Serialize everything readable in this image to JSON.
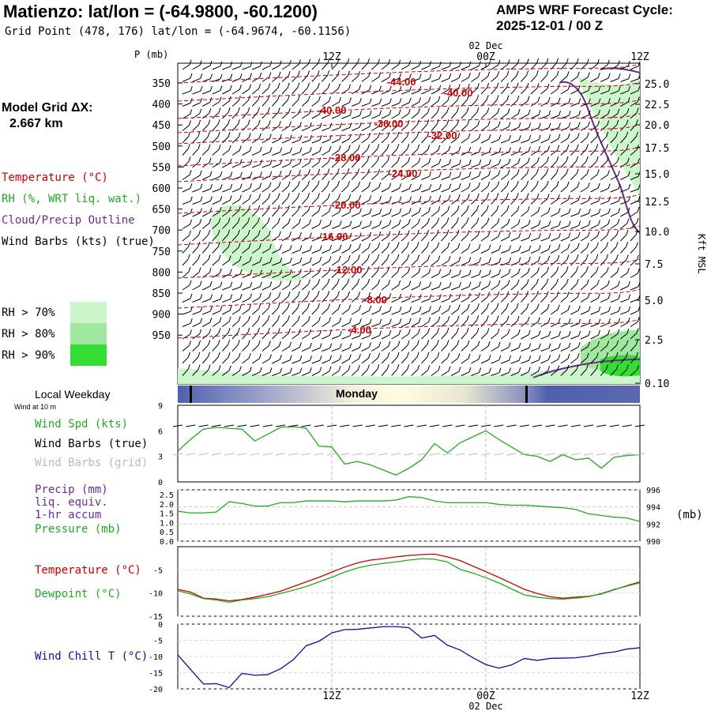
{
  "header": {
    "title": "Matienzo:  lat/lon = (-64.9800, -60.1200)",
    "grid_point": "Grid Point (478, 176) lat/lon = (-64.9674, -60.1156)",
    "cycle_line1": "AMPS WRF Forecast Cycle:",
    "cycle_line2": "2025-12-01 / 00  Z",
    "model_grid_label": "Model Grid ΔX:",
    "model_grid_value": "2.667 km"
  },
  "legend": {
    "temperature": "Temperature (°C)",
    "rh": "RH (%, WRT liq. wat.)",
    "cloud": "Cloud/Precip Outline",
    "wind_barbs": "Wind Barbs (kts) (true)",
    "rh70": "RH > 70%",
    "rh80": "RH > 80%",
    "rh90": "RH > 90%",
    "local_weekday": "Local Weekday",
    "wind_at": "Wind at 10 m",
    "weekday": "Monday",
    "wind_spd": "Wind Spd (kts)",
    "wind_barbs_true": "Wind Barbs (true)",
    "wind_barbs_grid": "Wind Barbs (grid)",
    "precip1": "Precip (mm)",
    "precip2": "liq. equiv.",
    "precip3": "1-hr accum",
    "pressure": "Pressure (mb)",
    "pressure_unit": "(mb)",
    "temp2": "Temperature (°C)",
    "dewpoint": "Dewpoint (°C)",
    "windchill": "Wind Chill T (°C)"
  },
  "colors": {
    "temperature": "#cc0000",
    "rh": "#22aa22",
    "cloud": "#6a2c91",
    "grid_barbs": "#bbbbbb",
    "wind_chill": "#1010a0",
    "rh70": "#ccf5cc",
    "rh80": "#a0e8a0",
    "rh90": "#33dd33"
  },
  "chart_data": [
    {
      "type": "contour",
      "name": "cross-section",
      "p_axis_label": "P (mb)",
      "p_ticks": [
        "350",
        "400",
        "450",
        "500",
        "550",
        "600",
        "650",
        "700",
        "750",
        "800",
        "850",
        "900",
        "950"
      ],
      "z_axis_label": "Kft MSL",
      "z_ticks": [
        "25.0",
        "22.5",
        "20.0",
        "17.5",
        "15.0",
        "12.5",
        "10.0",
        "7.5",
        "5.0",
        "2.5",
        "0.10"
      ],
      "time_ticks_top": [
        "12Z",
        "00Z",
        "12Z"
      ],
      "date_top": "02 Dec",
      "temperature_contours": [
        "-44.00",
        "-40.00",
        "-40.00",
        "-36.00",
        "-32.00",
        "-28.00",
        "-24.00",
        "-20.00",
        "-16.00",
        "-12.00",
        "-8.00",
        "-4.00"
      ]
    },
    {
      "type": "line",
      "name": "wind-speed",
      "yticks": [
        "9",
        "6",
        "3",
        "0"
      ],
      "ylim": [
        0,
        9
      ],
      "hours": [
        0,
        1,
        2,
        3,
        4,
        5,
        6,
        7,
        8,
        9,
        10,
        11,
        12,
        13,
        14,
        15,
        16,
        17,
        18,
        19,
        20,
        21,
        22,
        23,
        24,
        25,
        26,
        27,
        28,
        29,
        30,
        31,
        32,
        33,
        34,
        35,
        36
      ],
      "values": [
        3.6,
        5.0,
        6.2,
        6.4,
        6.3,
        6.2,
        4.8,
        5.6,
        6.4,
        6.5,
        6.3,
        4.2,
        4.1,
        2.1,
        2.4,
        2.0,
        1.4,
        0.8,
        1.6,
        2.6,
        4.5,
        3.4,
        4.6,
        5.3,
        6.0,
        5.0,
        4.1,
        3.2,
        3.0,
        2.4,
        3.2,
        2.6,
        2.8,
        1.6,
        2.9,
        3.1,
        3.2
      ]
    },
    {
      "type": "line",
      "name": "precip-pressure",
      "precip_ticks": [
        "2.5",
        "2.0",
        "1.5",
        "1.0",
        "0.5",
        "0.0"
      ],
      "pressure_ticks": [
        "996",
        "994",
        "992",
        "990"
      ],
      "pressure_ylim": [
        990,
        996
      ],
      "precip_values": [
        0,
        0,
        0,
        0,
        0,
        0,
        0,
        0,
        0,
        0,
        0,
        0,
        0,
        0,
        0,
        0,
        0,
        0,
        0,
        0,
        0,
        0,
        0,
        0,
        0,
        0,
        0,
        0,
        0,
        0,
        0,
        0,
        0,
        0,
        0,
        0,
        0
      ],
      "pressure_values": [
        993.5,
        993.3,
        993.3,
        993.4,
        994.6,
        994.4,
        994.1,
        994.1,
        994.5,
        994.5,
        994.7,
        994.7,
        994.7,
        994.6,
        994.7,
        994.7,
        994.7,
        994.8,
        995.2,
        995.1,
        994.7,
        994.5,
        994.5,
        994.5,
        994.5,
        994.3,
        994.2,
        994.2,
        994.1,
        994.0,
        993.9,
        993.7,
        993.2,
        993.0,
        992.8,
        992.7,
        992.3
      ]
    },
    {
      "type": "line",
      "name": "temperature-dewpoint",
      "yticks": [
        "-5",
        "-10",
        "-15"
      ],
      "ylim": [
        -15,
        0
      ],
      "temperature": [
        -9.2,
        -9.8,
        -11.1,
        -11.3,
        -11.7,
        -11.4,
        -10.9,
        -10.3,
        -9.6,
        -8.6,
        -7.6,
        -6.6,
        -5.5,
        -4.4,
        -3.5,
        -2.9,
        -2.6,
        -2.2,
        -1.9,
        -1.7,
        -1.6,
        -2.2,
        -3.0,
        -4.2,
        -5.4,
        -6.6,
        -7.9,
        -9.2,
        -10.1,
        -10.8,
        -11.1,
        -10.9,
        -10.7,
        -10.2,
        -9.3,
        -8.4,
        -7.6
      ],
      "dewpoint": [
        -9.5,
        -10.2,
        -11.2,
        -11.5,
        -12.0,
        -11.5,
        -11.2,
        -10.8,
        -10.1,
        -9.4,
        -8.6,
        -7.6,
        -6.6,
        -5.5,
        -4.6,
        -4.0,
        -3.6,
        -3.3,
        -2.9,
        -2.6,
        -2.7,
        -3.3,
        -4.9,
        -5.7,
        -6.7,
        -7.8,
        -9.1,
        -10.4,
        -10.9,
        -11.2,
        -11.3,
        -11.1,
        -10.8,
        -10.1,
        -9.2,
        -8.5,
        -7.8
      ]
    },
    {
      "type": "line",
      "name": "wind-chill",
      "yticks": [
        "0",
        "-5",
        "-10",
        "-15",
        "-20"
      ],
      "ylim": [
        -20,
        0
      ],
      "values": [
        -9.5,
        -14,
        -18.5,
        -18.4,
        -19.6,
        -15.2,
        -15.8,
        -15.6,
        -13.8,
        -11.0,
        -6.7,
        -5.3,
        -2.7,
        -1.7,
        -1.6,
        -1.2,
        -0.8,
        -0.8,
        -1.1,
        -4.3,
        -3.5,
        -6.5,
        -8.0,
        -10.4,
        -12.5,
        -13.6,
        -12.6,
        -10.6,
        -11.2,
        -10.6,
        -10.5,
        -10.4,
        -9.9,
        -9.1,
        -8.6,
        -7.7,
        -7.3
      ],
      "time_ticks_bottom": [
        "12Z",
        "00Z",
        "12Z"
      ],
      "date_bottom": "02 Dec"
    }
  ]
}
